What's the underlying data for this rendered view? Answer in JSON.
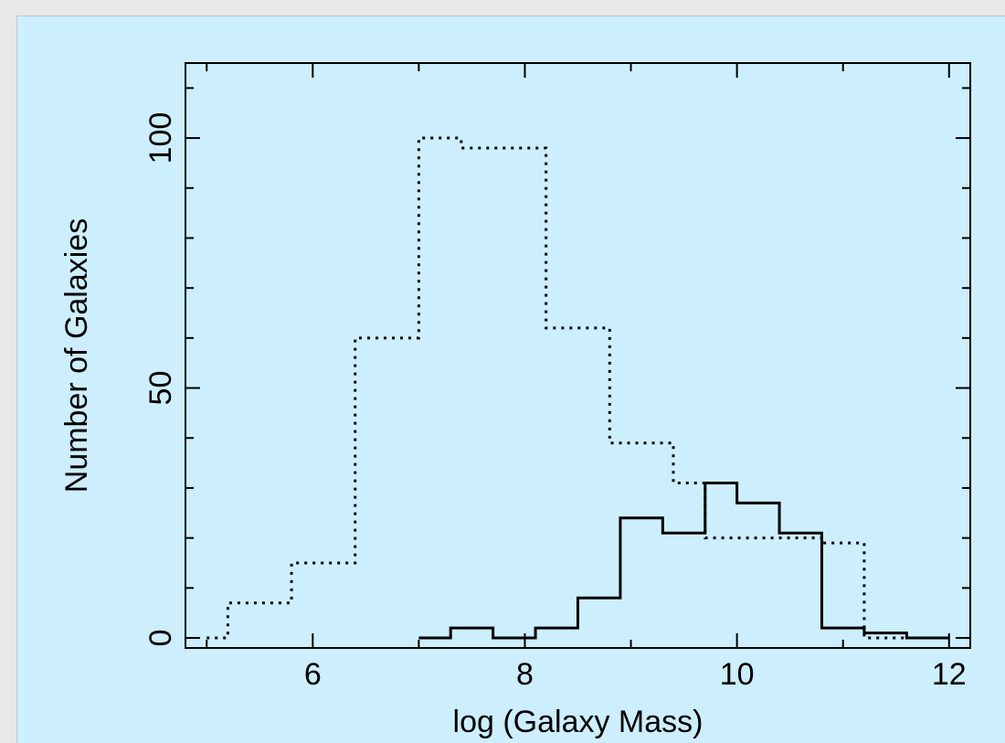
{
  "chart_data": {
    "type": "histogram",
    "title": "",
    "xlabel": "log (Galaxy Mass)",
    "ylabel": "Number of Galaxies",
    "xlim": [
      4.8,
      12.2
    ],
    "ylim": [
      -2,
      115
    ],
    "xticks": [
      6,
      8,
      10,
      12
    ],
    "yticks": [
      0,
      50,
      100
    ],
    "grid": false,
    "series": [
      {
        "style": "solid",
        "edges": [
          7.0,
          7.3,
          7.7,
          8.1,
          8.5,
          8.9,
          9.3,
          9.7,
          10.0,
          10.4,
          10.8,
          11.2,
          11.6,
          12.0
        ],
        "counts": [
          0,
          2,
          0,
          2,
          8,
          24,
          21,
          31,
          27,
          21,
          2,
          1,
          0
        ]
      },
      {
        "style": "dotted",
        "edges": [
          5.0,
          5.2,
          5.8,
          6.4,
          7.0,
          7.4,
          7.7,
          8.2,
          8.8,
          9.4,
          9.7,
          10.2,
          10.8,
          11.2,
          12.0
        ],
        "counts": [
          0,
          7,
          15,
          60,
          100,
          98,
          98,
          62,
          39,
          31,
          20,
          20,
          19,
          0
        ]
      }
    ]
  }
}
